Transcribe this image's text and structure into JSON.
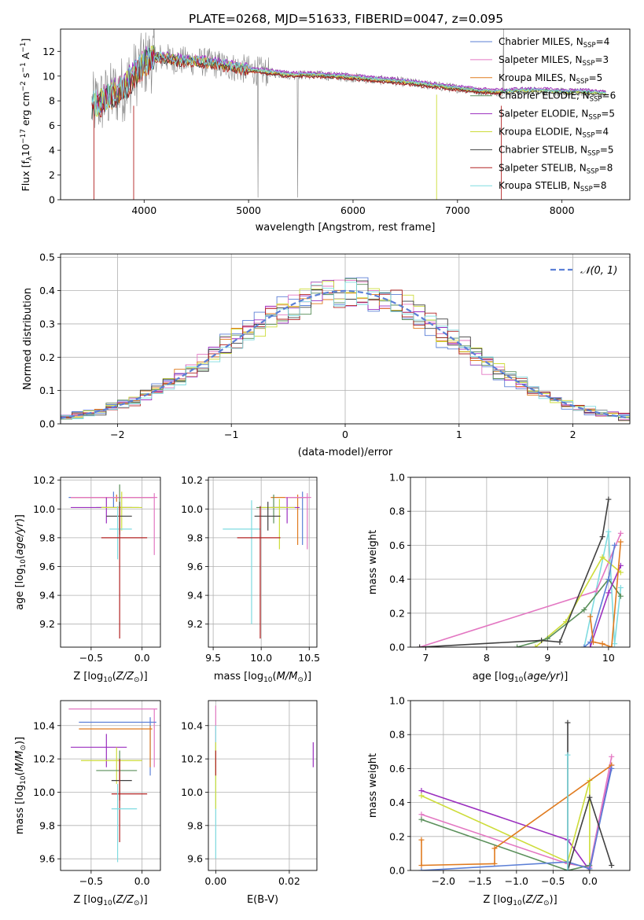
{
  "figure": {
    "title": "PLATE=0268, MJD=51633, FIBERID=0047, z=0.095"
  },
  "colors": {
    "c0": "#5b7fd6",
    "c1": "#e377c2",
    "c2": "#e07b1f",
    "c3": "#5a8f5a",
    "c4": "#9b2fbf",
    "c5": "#cddc39",
    "c6": "#404040",
    "c7": "#b22222",
    "c8": "#7fdbe0",
    "data": "#808080"
  },
  "chart_data": [
    {
      "id": "spectrum",
      "type": "line",
      "xlabel": "wavelength [Angstrom, rest frame]",
      "ylabel": "Flux [f",
      "xlim": [
        3200,
        8650
      ],
      "ylim": [
        0,
        13.8
      ],
      "xticks": [
        4000,
        5000,
        6000,
        7000,
        8000
      ],
      "yticks": [
        0,
        2,
        4,
        6,
        8,
        10,
        12
      ],
      "legend_position": "upper right",
      "series": [
        {
          "name": "Chabrier MILES, N",
          "sub": "SSP",
          "count": "=4",
          "color_key": "c0"
        },
        {
          "name": "Salpeter MILES, N",
          "sub": "SSP",
          "count": "=3",
          "color_key": "c1"
        },
        {
          "name": "Kroupa MILES, N",
          "sub": "SSP",
          "count": "=5",
          "color_key": "c2"
        },
        {
          "name": "Chabrier ELODIE, N",
          "sub": "SSP",
          "count": "=6",
          "color_key": "c3"
        },
        {
          "name": "Salpeter ELODIE, N",
          "sub": "SSP",
          "count": "=5",
          "color_key": "c4"
        },
        {
          "name": "Kroupa ELODIE, N",
          "sub": "SSP",
          "count": "=4",
          "color_key": "c5"
        },
        {
          "name": "Chabrier STELIB, N",
          "sub": "SSP",
          "count": "=5",
          "color_key": "c6"
        },
        {
          "name": "Salpeter STELIB, N",
          "sub": "SSP",
          "count": "=8",
          "color_key": "c7"
        },
        {
          "name": "Kroupa STELIB, N",
          "sub": "SSP",
          "count": "=8",
          "color_key": "c8"
        }
      ],
      "continuum": {
        "x": [
          3500,
          3600,
          3700,
          3800,
          3900,
          4000,
          4100,
          4200,
          4300,
          4400,
          4500,
          4600,
          4800,
          5000,
          5200,
          5400,
          5600,
          5800,
          6000,
          6200,
          6400,
          6600,
          6800,
          7000,
          7200,
          7400,
          7600,
          7800,
          8000,
          8200,
          8400
        ],
        "y": [
          7.5,
          8.0,
          8.5,
          9.0,
          10.0,
          11.0,
          11.5,
          11.5,
          11.3,
          11.2,
          11.2,
          11.1,
          10.8,
          10.5,
          10.3,
          10.1,
          10.1,
          10.0,
          9.9,
          9.7,
          9.6,
          9.4,
          9.2,
          9.0,
          8.8,
          8.7,
          8.8,
          8.8,
          8.7,
          8.7,
          8.6
        ]
      }
    },
    {
      "id": "residuals",
      "type": "line",
      "xlabel": "(data-model)/error",
      "ylabel": "Normed distribution",
      "xlim": [
        -2.5,
        2.5
      ],
      "ylim": [
        0,
        0.51
      ],
      "xticks": [
        -2,
        -1,
        0,
        1,
        2
      ],
      "xtick_labels": [
        "−2",
        "−1",
        "0",
        "1",
        "2"
      ],
      "yticks": [
        0.0,
        0.1,
        0.2,
        0.3,
        0.4,
        0.5
      ],
      "ytick_labels": [
        "0.0",
        "0.1",
        "0.2",
        "0.3",
        "0.4",
        "0.5"
      ],
      "grid": true,
      "legend_position": "upper right",
      "gauss_label": "𝒩(0, 1)",
      "bin_width": 0.1
    },
    {
      "id": "age_vs_Z",
      "type": "scatter",
      "xlabel": "Z [log",
      "ylabel": "age  [log",
      "xlim": [
        -0.8,
        0.18
      ],
      "ylim": [
        9.04,
        10.22
      ],
      "xticks": [
        -0.5,
        0.0
      ],
      "xtick_labels": [
        "−0.5",
        "0.0"
      ],
      "yticks": [
        9.2,
        9.4,
        9.6,
        9.8,
        10.0,
        10.2
      ],
      "ytick_labels": [
        "9.2",
        "9.4",
        "9.6",
        "9.8",
        "10.0",
        "10.2"
      ],
      "grid": true,
      "points": [
        {
          "c": "c0",
          "x": -0.28,
          "y": 10.08,
          "xlo": -0.72,
          "xhi": 0.12,
          "ylo": 10.01,
          "yhi": 10.12
        },
        {
          "c": "c2",
          "x": -0.25,
          "y": 10.08,
          "xlo": -0.7,
          "xhi": 0.1,
          "ylo": 10.05,
          "yhi": 10.1
        },
        {
          "c": "c1",
          "x": 0.12,
          "y": 10.08,
          "xlo": -0.7,
          "xhi": 0.15,
          "ylo": 9.68,
          "yhi": 10.11
        },
        {
          "c": "c3",
          "x": -0.22,
          "y": 10.01,
          "xlo": -0.45,
          "xhi": -0.03,
          "ylo": 9.85,
          "yhi": 10.17
        },
        {
          "c": "c4",
          "x": -0.35,
          "y": 10.01,
          "xlo": -0.7,
          "xhi": -0.1,
          "ylo": 9.9,
          "yhi": 10.08
        },
        {
          "c": "c5",
          "x": -0.2,
          "y": 10.01,
          "xlo": -0.4,
          "xhi": 0.0,
          "ylo": 9.85,
          "yhi": 10.12
        },
        {
          "c": "c6",
          "x": -0.22,
          "y": 9.95,
          "xlo": -0.35,
          "xhi": -0.1,
          "ylo": 9.82,
          "yhi": 10.05
        },
        {
          "c": "c8",
          "x": -0.24,
          "y": 9.86,
          "xlo": -0.32,
          "xhi": -0.1,
          "ylo": 9.65,
          "yhi": 10.02
        },
        {
          "c": "c7",
          "x": -0.22,
          "y": 9.8,
          "xlo": -0.4,
          "xhi": 0.05,
          "ylo": 9.1,
          "yhi": 10.02
        }
      ]
    },
    {
      "id": "age_vs_mass",
      "type": "scatter",
      "xlabel": "mass [log",
      "ylabel": "",
      "xlim": [
        9.45,
        10.58
      ],
      "ylim": [
        9.04,
        10.22
      ],
      "xticks": [
        9.5,
        10.0,
        10.5
      ],
      "xtick_labels": [
        "9.5",
        "10.0",
        "10.5"
      ],
      "yticks": [
        9.2,
        9.4,
        9.6,
        9.8,
        10.0,
        10.2
      ],
      "ytick_labels": [
        "9.2",
        "9.4",
        "9.6",
        "9.8",
        "10.0",
        "10.2"
      ],
      "grid": true,
      "points": [
        {
          "c": "c0",
          "x": 10.43,
          "y": 10.08,
          "xlo": 10.3,
          "xhi": 10.48,
          "ylo": 9.75,
          "yhi": 10.12
        },
        {
          "c": "c2",
          "x": 10.38,
          "y": 10.08,
          "xlo": 10.1,
          "xhi": 10.45,
          "ylo": 9.75,
          "yhi": 10.1
        },
        {
          "c": "c1",
          "x": 10.48,
          "y": 10.08,
          "xlo": 10.25,
          "xhi": 10.52,
          "ylo": 9.72,
          "yhi": 10.11
        },
        {
          "c": "c3",
          "x": 10.13,
          "y": 10.01,
          "xlo": 9.95,
          "xhi": 10.25,
          "ylo": 9.9,
          "yhi": 10.1
        },
        {
          "c": "c4",
          "x": 10.27,
          "y": 10.01,
          "xlo": 10.1,
          "xhi": 10.4,
          "ylo": 9.9,
          "yhi": 10.08
        },
        {
          "c": "c5",
          "x": 10.19,
          "y": 10.01,
          "xlo": 10.0,
          "xhi": 10.35,
          "ylo": 9.72,
          "yhi": 10.07
        },
        {
          "c": "c6",
          "x": 10.07,
          "y": 9.95,
          "xlo": 9.93,
          "xhi": 10.2,
          "ylo": 9.85,
          "yhi": 10.05
        },
        {
          "c": "c8",
          "x": 9.9,
          "y": 9.86,
          "xlo": 9.6,
          "xhi": 10.0,
          "ylo": 9.2,
          "yhi": 10.06
        },
        {
          "c": "c7",
          "x": 9.99,
          "y": 9.8,
          "xlo": 9.75,
          "xhi": 10.2,
          "ylo": 9.1,
          "yhi": 10.02
        }
      ]
    },
    {
      "id": "weight_vs_age",
      "type": "line",
      "xlabel": "age  [log",
      "ylabel": "mass weight",
      "xlim": [
        6.75,
        10.35
      ],
      "ylim": [
        0,
        1.0
      ],
      "xticks": [
        7,
        8,
        9,
        10
      ],
      "xtick_labels": [
        "7",
        "8",
        "9",
        "10"
      ],
      "yticks": [
        0.0,
        0.2,
        0.4,
        0.6,
        0.8,
        1.0
      ],
      "ytick_labels": [
        "0.0",
        "0.2",
        "0.4",
        "0.6",
        "0.8",
        "1.0"
      ],
      "grid": true,
      "series": [
        {
          "c": "c8",
          "x": [
            9.6,
            10.0,
            10.1,
            10.2
          ],
          "y": [
            0.0,
            0.68,
            0.02,
            0.35
          ]
        },
        {
          "c": "c1",
          "x": [
            6.9,
            9.8,
            10.2
          ],
          "y": [
            0.0,
            0.33,
            0.67
          ]
        },
        {
          "c": "c5",
          "x": [
            8.8,
            9.3,
            9.9,
            10.2
          ],
          "y": [
            0.0,
            0.15,
            0.53,
            0.44
          ]
        },
        {
          "c": "c3",
          "x": [
            8.5,
            9.0,
            9.6,
            10.0,
            10.2
          ],
          "y": [
            0.0,
            0.05,
            0.22,
            0.4,
            0.3
          ]
        },
        {
          "c": "c0",
          "x": [
            9.6,
            9.7,
            10.0,
            10.1
          ],
          "y": [
            0.0,
            0.03,
            0.4,
            0.6
          ]
        },
        {
          "c": "c6",
          "x": [
            6.9,
            8.9,
            9.2,
            9.9,
            10.0
          ],
          "y": [
            0.0,
            0.04,
            0.03,
            0.65,
            0.87
          ]
        },
        {
          "c": "c4",
          "x": [
            9.7,
            10.0,
            10.2
          ],
          "y": [
            0.0,
            0.32,
            0.48
          ]
        },
        {
          "c": "c2",
          "x": [
            9.7,
            9.75,
            9.9,
            10.05,
            10.2
          ],
          "y": [
            0.18,
            0.03,
            0.02,
            0.0,
            0.62
          ]
        }
      ]
    },
    {
      "id": "mass_vs_Z",
      "type": "scatter",
      "xlabel": "Z [log",
      "ylabel": "mass [log",
      "xlim": [
        -0.8,
        0.18
      ],
      "ylim": [
        9.53,
        10.55
      ],
      "xticks": [
        -0.5,
        0.0
      ],
      "xtick_labels": [
        "−0.5",
        "0.0"
      ],
      "yticks": [
        9.6,
        9.8,
        10.0,
        10.2,
        10.4
      ],
      "ytick_labels": [
        "9.6",
        "9.8",
        "10.0",
        "10.2",
        "10.4"
      ],
      "grid": true,
      "points": [
        {
          "c": "c1",
          "x": 0.12,
          "y": 10.5,
          "xlo": -0.72,
          "xhi": 0.15,
          "ylo": 10.15,
          "yhi": 10.5
        },
        {
          "c": "c0",
          "x": 0.08,
          "y": 10.42,
          "xlo": -0.62,
          "xhi": 0.14,
          "ylo": 10.1,
          "yhi": 10.45
        },
        {
          "c": "c2",
          "x": 0.08,
          "y": 10.38,
          "xlo": -0.62,
          "xhi": 0.1,
          "ylo": 10.15,
          "yhi": 10.4
        },
        {
          "c": "c4",
          "x": -0.35,
          "y": 10.27,
          "xlo": -0.7,
          "xhi": -0.15,
          "ylo": 10.15,
          "yhi": 10.35
        },
        {
          "c": "c5",
          "x": -0.25,
          "y": 10.19,
          "xlo": -0.6,
          "xhi": 0.0,
          "ylo": 10.05,
          "yhi": 10.27
        },
        {
          "c": "c3",
          "x": -0.22,
          "y": 10.13,
          "xlo": -0.45,
          "xhi": -0.05,
          "ylo": 10.0,
          "yhi": 10.25
        },
        {
          "c": "c6",
          "x": -0.22,
          "y": 10.07,
          "xlo": -0.3,
          "xhi": -0.1,
          "ylo": 9.95,
          "yhi": 10.2
        },
        {
          "c": "c7",
          "x": -0.22,
          "y": 9.99,
          "xlo": -0.3,
          "xhi": 0.05,
          "ylo": 9.7,
          "yhi": 10.2
        },
        {
          "c": "c8",
          "x": -0.24,
          "y": 9.9,
          "xlo": -0.3,
          "xhi": -0.05,
          "ylo": 9.58,
          "yhi": 10.05
        }
      ]
    },
    {
      "id": "mass_vs_ebv",
      "type": "scatter",
      "xlabel": "E(B-V)",
      "ylabel": "",
      "xlim": [
        -0.002,
        0.0275
      ],
      "ylim": [
        9.53,
        10.55
      ],
      "xticks": [
        0.0,
        0.02
      ],
      "xtick_labels": [
        "0.00",
        "0.02"
      ],
      "yticks": [
        9.6,
        9.8,
        10.0,
        10.2,
        10.4
      ],
      "ytick_labels": [
        "9.6",
        "9.8",
        "10.0",
        "10.2",
        "10.4"
      ],
      "grid": true,
      "points": [
        {
          "c": "c1",
          "x": 0.0,
          "y": 10.4,
          "xlo": 0.0,
          "xhi": 0.0,
          "ylo": 10.15,
          "yhi": 10.52
        },
        {
          "c": "c8",
          "x": 0.0,
          "y": 10.0,
          "xlo": 0.0,
          "xhi": 0.0,
          "ylo": 9.6,
          "yhi": 10.4
        },
        {
          "c": "c5",
          "x": 0.0,
          "y": 10.2,
          "xlo": 0.0,
          "xhi": 0.0,
          "ylo": 9.9,
          "yhi": 10.3
        },
        {
          "c": "c7",
          "x": 0.0,
          "y": 10.2,
          "xlo": 0.0,
          "xhi": 0.0,
          "ylo": 10.1,
          "yhi": 10.25
        },
        {
          "c": "c4",
          "x": 0.0265,
          "y": 10.22,
          "xlo": 0.0265,
          "xhi": 0.0265,
          "ylo": 10.15,
          "yhi": 10.3
        }
      ]
    },
    {
      "id": "weight_vs_Z",
      "type": "line",
      "xlabel": "Z [log",
      "ylabel": "mass weight",
      "xlim": [
        -2.45,
        0.55
      ],
      "ylim": [
        0,
        1.0
      ],
      "xticks": [
        -2.0,
        -1.5,
        -1.0,
        -0.5,
        0.0
      ],
      "xtick_labels": [
        "−2.0",
        "−1.5",
        "−1.0",
        "−0.5",
        "0.0"
      ],
      "yticks": [
        0.0,
        0.2,
        0.4,
        0.6,
        0.8,
        1.0
      ],
      "ytick_labels": [
        "0.0",
        "0.2",
        "0.4",
        "0.6",
        "0.8",
        "1.0"
      ],
      "grid": true,
      "series": [
        {
          "c": "c4",
          "x": [
            -2.3,
            -0.3,
            0.0,
            0.3
          ],
          "y": [
            0.47,
            0.18,
            0.0,
            0.62
          ]
        },
        {
          "c": "c5",
          "x": [
            -2.3,
            -0.3,
            0.0,
            0.0
          ],
          "y": [
            0.44,
            0.05,
            0.53,
            0.0
          ]
        },
        {
          "c": "c1",
          "x": [
            -2.3,
            -0.3,
            0.0,
            0.3
          ],
          "y": [
            0.33,
            0.04,
            0.02,
            0.67
          ]
        },
        {
          "c": "c3",
          "x": [
            -2.3,
            -0.3,
            0.0
          ],
          "y": [
            0.3,
            0.0,
            0.03
          ]
        },
        {
          "c": "c2",
          "x": [
            -2.3,
            -2.3,
            -1.3,
            -1.3,
            0.3
          ],
          "y": [
            0.18,
            0.03,
            0.04,
            0.13,
            0.62
          ]
        },
        {
          "c": "c0",
          "x": [
            -2.3,
            -0.3,
            0.0,
            0.3
          ],
          "y": [
            0.0,
            0.05,
            0.01,
            0.6
          ]
        },
        {
          "c": "c6",
          "x": [
            -0.3,
            -0.3,
            0.0,
            0.3
          ],
          "y": [
            0.87,
            0.0,
            0.43,
            0.03
          ]
        },
        {
          "c": "c8",
          "x": [
            -0.3,
            -0.3
          ],
          "y": [
            0.68,
            0.0
          ]
        }
      ]
    }
  ]
}
